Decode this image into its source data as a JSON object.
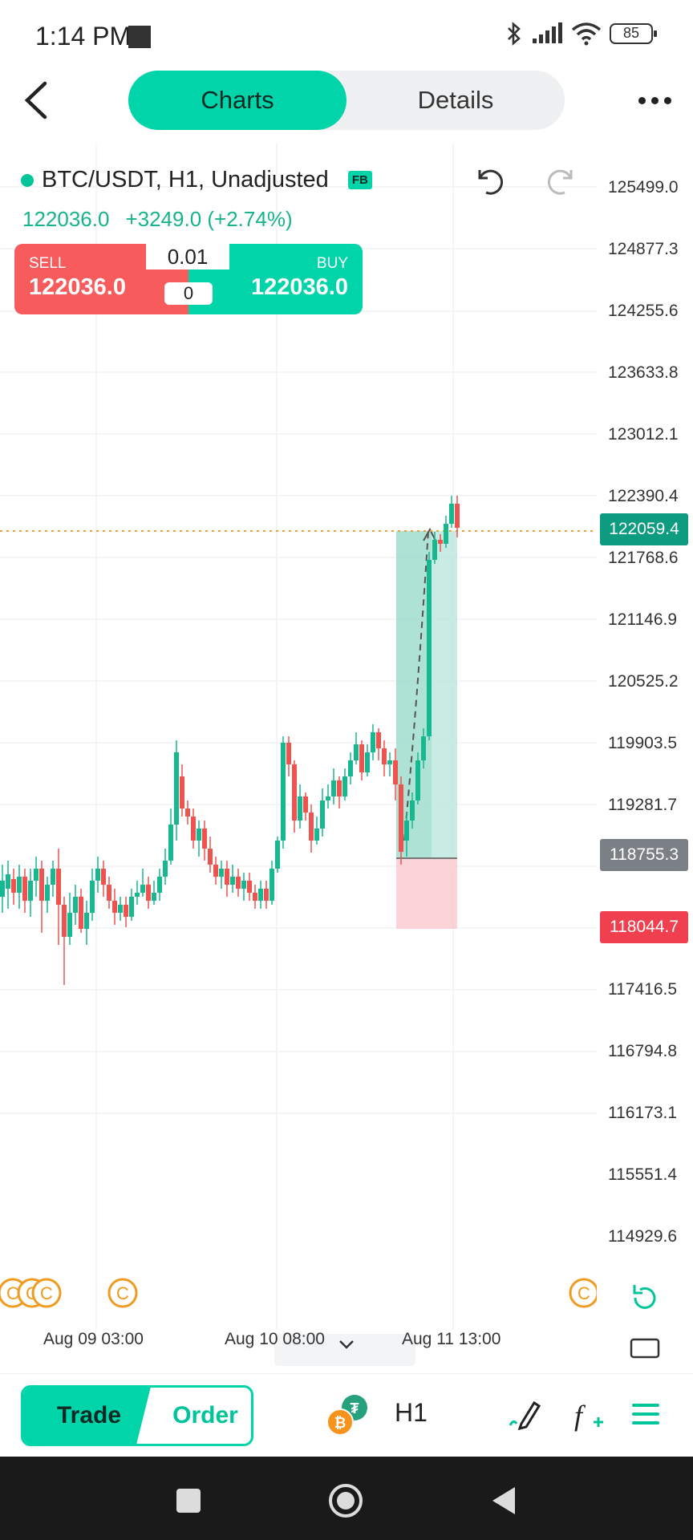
{
  "status_bar": {
    "time": "1:14 PM",
    "battery": "85"
  },
  "nav": {
    "tabs": [
      {
        "label": "Charts",
        "active": true
      },
      {
        "label": "Details",
        "active": false
      }
    ]
  },
  "symbol": {
    "name": "BTC/USDT, H1, Unadjusted",
    "badge": "FB",
    "last": "122036.0",
    "change": "+3249.0 (+2.74%)"
  },
  "trade": {
    "sell_label": "SELL",
    "sell_price": "122036.0",
    "buy_label": "BUY",
    "buy_price": "122036.0",
    "lot": "0.01",
    "spread": "0"
  },
  "price_axis": [
    "125499.0",
    "124877.3",
    "124255.6",
    "123633.8",
    "123012.1",
    "122390.4",
    "121768.6",
    "121146.9",
    "120525.2",
    "119903.5",
    "119281.7",
    "117416.5",
    "116794.8",
    "116173.1",
    "115551.4",
    "114929.6"
  ],
  "price_tags": [
    {
      "value": "122059.4",
      "color": "#0e9c80"
    },
    {
      "value": "118755.3",
      "color": "#7b7f86"
    },
    {
      "value": "118044.7",
      "color": "#f04050"
    }
  ],
  "x_axis": [
    "Aug 09 03:00",
    "Aug 10 08:00",
    "Aug 11 13:00"
  ],
  "toolbar": {
    "trade": "Trade",
    "order": "Order",
    "timeframe": "H1"
  },
  "colors": {
    "accent": "#00d4a8",
    "up": "#15b88f",
    "down": "#ef5350"
  }
}
